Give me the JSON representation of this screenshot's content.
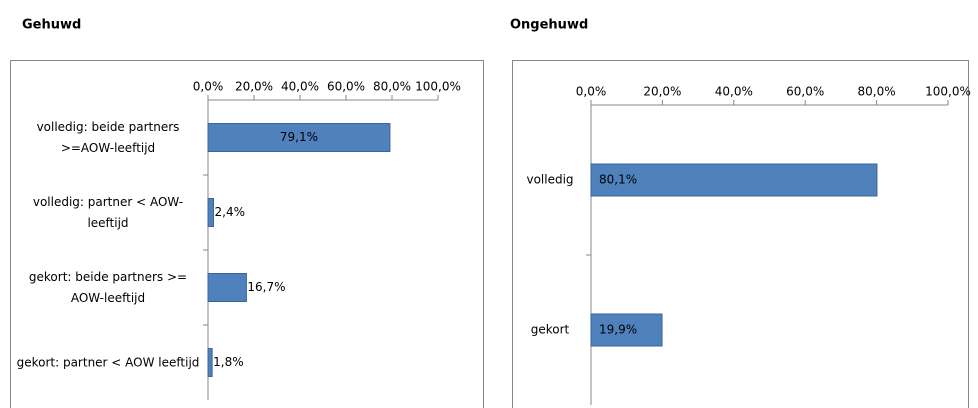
{
  "chart_data": [
    {
      "type": "bar",
      "orientation": "horizontal",
      "title": "Gehuwd",
      "categories": [
        "volledig: beide partners >=AOW-leeftijd",
        "volledig: partner < AOW-leeftijd",
        "gekort: beide partners >= AOW-leeftijd",
        "gekort: partner < AOW leeftijd"
      ],
      "values": [
        79.1,
        2.4,
        16.7,
        1.8
      ],
      "value_labels": [
        "79,1%",
        "2,4%",
        "16,7%",
        "1,8%"
      ],
      "color": "#4f81bd",
      "xlim": [
        0,
        100
      ],
      "xticks": [
        {
          "value": 0,
          "label": "0,0%"
        },
        {
          "value": 20,
          "label": "20,0%"
        },
        {
          "value": 40,
          "label": "40,0%"
        },
        {
          "value": 60,
          "label": "60,0%"
        },
        {
          "value": 80,
          "label": "80,0%"
        },
        {
          "value": 100,
          "label": "100,0%"
        }
      ]
    },
    {
      "type": "bar",
      "orientation": "horizontal",
      "title": "Ongehuwd",
      "categories": [
        "volledig",
        "gekort"
      ],
      "values": [
        80.1,
        19.9
      ],
      "value_labels": [
        "80,1%",
        "19,9%"
      ],
      "color": "#4f81bd",
      "xlim": [
        0,
        100
      ],
      "xticks": [
        {
          "value": 0,
          "label": "0,0%"
        },
        {
          "value": 20,
          "label": "20,0%"
        },
        {
          "value": 40,
          "label": "40,0%"
        },
        {
          "value": 60,
          "label": "60,0%"
        },
        {
          "value": 80,
          "label": "80,0%"
        },
        {
          "value": 100,
          "label": "100,0%"
        }
      ]
    }
  ]
}
